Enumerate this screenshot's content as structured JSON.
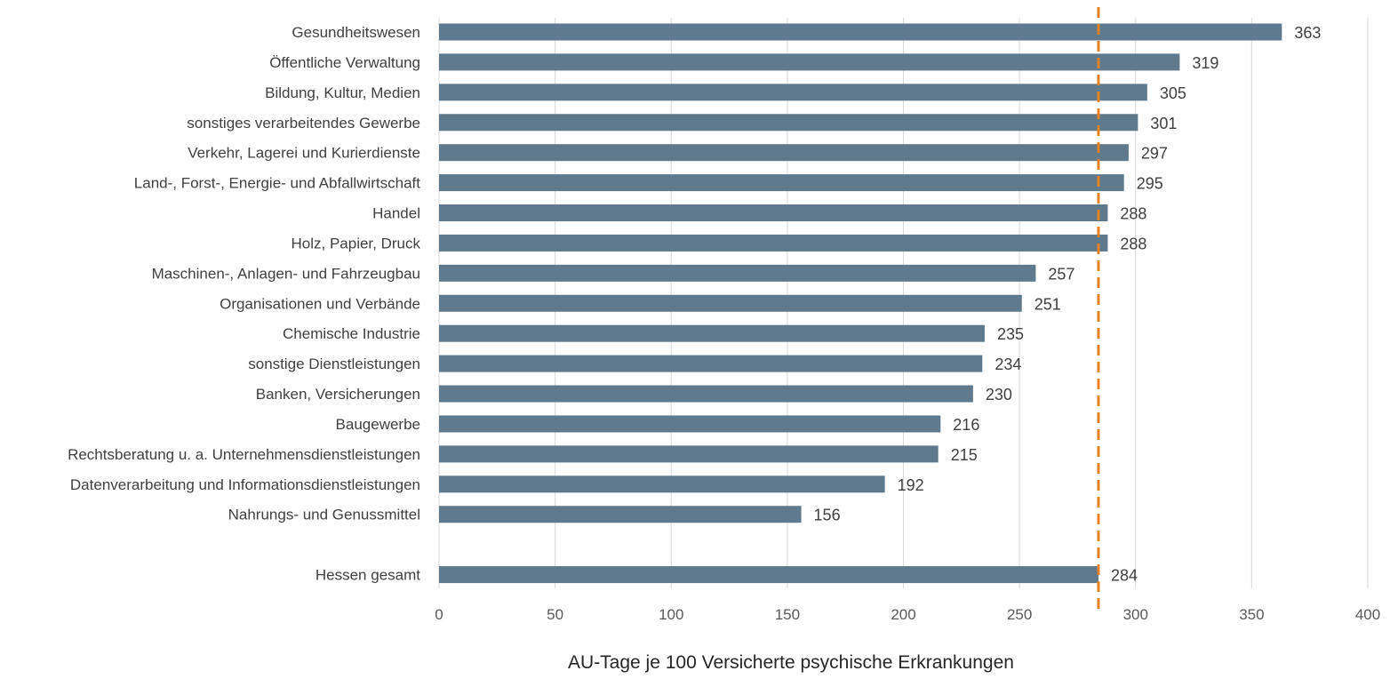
{
  "chart_data": {
    "type": "bar",
    "orientation": "horizontal",
    "categories": [
      "Gesundheitswesen",
      "Öffentliche Verwaltung",
      "Bildung, Kultur, Medien",
      "sonstiges verarbeitendes Gewerbe",
      "Verkehr, Lagerei und Kurierdienste",
      "Land-, Forst-,  Energie- und Abfallwirtschaft",
      "Handel",
      "Holz, Papier, Druck",
      "Maschinen-, Anlagen- und Fahrzeugbau",
      "Organisationen und Verbände",
      "Chemische Industrie",
      "sonstige Dienstleistungen",
      "Banken, Versicherungen",
      "Baugewerbe",
      "Rechtsberatung u. a. Unternehmensdienstleistungen",
      "Datenverarbeitung und Informationsdienstleistungen",
      "Nahrungs- und Genussmittel",
      "",
      "Hessen gesamt"
    ],
    "values": [
      363,
      319,
      305,
      301,
      297,
      295,
      288,
      288,
      257,
      251,
      235,
      234,
      230,
      216,
      215,
      192,
      156,
      null,
      284
    ],
    "xlabel": "AU-Tage je 100 Versicherte psychische Erkrankungen",
    "ylabel": "",
    "xlim": [
      0,
      400
    ],
    "xticks": [
      0,
      50,
      100,
      150,
      200,
      250,
      300,
      350,
      400
    ],
    "reference_line": {
      "value": 284,
      "style": "dashed",
      "color": "#E8821E"
    },
    "grid": "vertical",
    "colors": {
      "bar": "#5F7A8C",
      "grid": "#D9D9D9",
      "reference": "#E8821E"
    }
  }
}
